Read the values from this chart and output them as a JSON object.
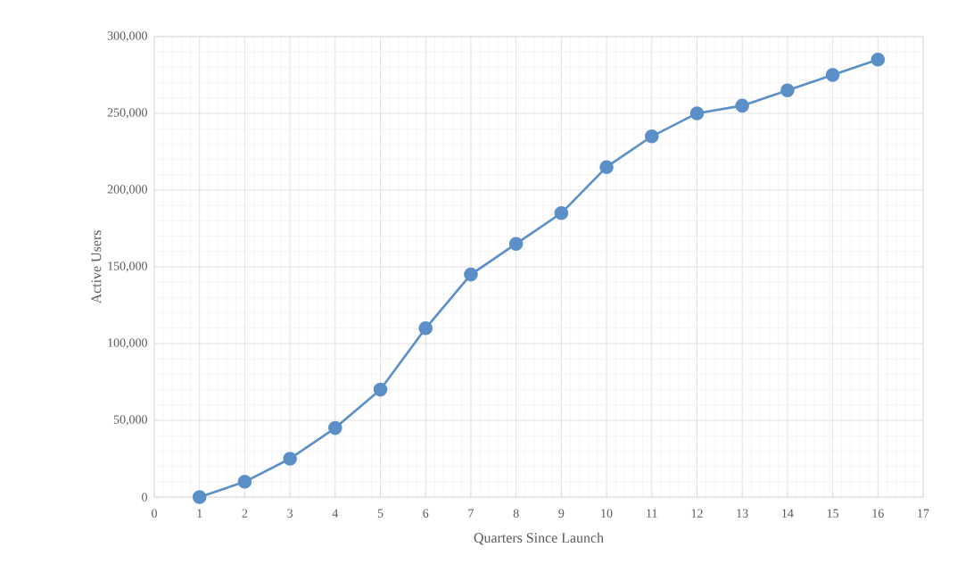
{
  "chart_data": {
    "type": "line",
    "xlabel": "Quarters Since Launch",
    "ylabel": "Active Users",
    "x": [
      1,
      2,
      3,
      4,
      5,
      6,
      7,
      8,
      9,
      10,
      11,
      12,
      13,
      14,
      15,
      16
    ],
    "series": [
      {
        "color": "#5b8fc7",
        "values": [
          0,
          10000,
          25000,
          45000,
          70000,
          110000,
          145000,
          165000,
          185000,
          215000,
          235000,
          250000,
          255000,
          265000,
          275000,
          285000
        ]
      }
    ],
    "xlim": [
      0,
      17
    ],
    "ylim": [
      0,
      300000
    ],
    "xticks": [
      0,
      1,
      2,
      3,
      4,
      5,
      6,
      7,
      8,
      9,
      10,
      11,
      12,
      13,
      14,
      15,
      16,
      17
    ],
    "yticks": [
      0,
      {
        "value": 50000,
        "label": "50,000"
      },
      {
        "value": 100000,
        "label": "100,000"
      },
      {
        "value": 150000,
        "label": "150,000"
      },
      {
        "value": 200000,
        "label": "200,000"
      },
      {
        "value": 250000,
        "label": "250,000"
      },
      {
        "value": 300000,
        "label": "300,000"
      }
    ],
    "grid": true,
    "marker": "circle",
    "line_style": "solid"
  }
}
